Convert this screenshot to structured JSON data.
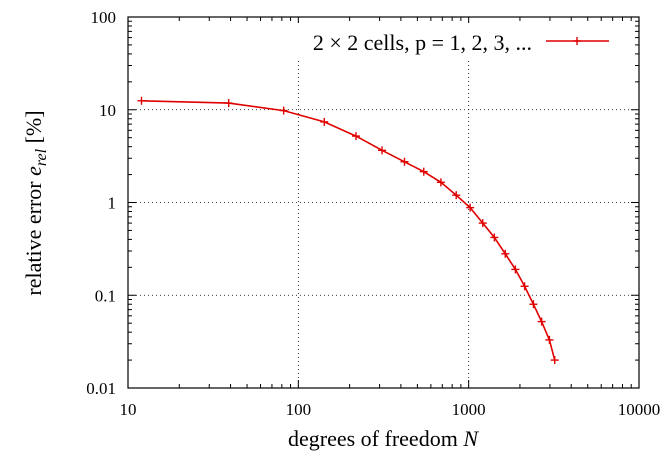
{
  "chart_data": {
    "type": "line",
    "xscale": "log",
    "yscale": "log",
    "xlim": [
      10,
      10000
    ],
    "ylim": [
      0.01,
      100
    ],
    "xlabel_text": "degrees of freedom",
    "xlabel_var": "N",
    "ylabel_text": "relative error",
    "ylabel_var": "e",
    "ylabel_sub": "rel",
    "ylabel_unit": "[%]",
    "x_ticks": [
      "10",
      "100",
      "1000",
      "10000"
    ],
    "y_ticks": [
      "0.01",
      "0.1",
      "1",
      "10",
      "100"
    ],
    "grid": true,
    "legend_position": "top-right",
    "series": [
      {
        "name": "2 × 2 cells, p = 1, 2, 3, ...",
        "color": "#e00000",
        "marker": "plus",
        "x": [
          12,
          39,
          82,
          142,
          218,
          310,
          420,
          545,
          687,
          845,
          1020,
          1210,
          1415,
          1640,
          1880,
          2130,
          2400,
          2680,
          2980,
          3200
        ],
        "y": [
          12.5,
          11.8,
          9.8,
          7.4,
          5.2,
          3.65,
          2.75,
          2.15,
          1.65,
          1.2,
          0.88,
          0.6,
          0.42,
          0.28,
          0.19,
          0.125,
          0.08,
          0.052,
          0.033,
          0.02
        ]
      }
    ]
  }
}
